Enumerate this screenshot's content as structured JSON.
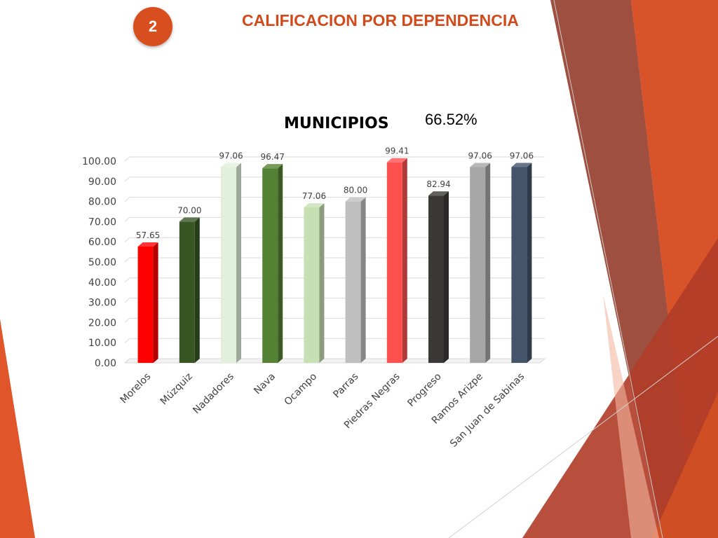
{
  "slide": {
    "number": "2",
    "title": "CALIFICACION POR DEPENDENCIA",
    "percent": "66.52%"
  },
  "colors": {
    "accent": "#d94e1f",
    "title": "#d04a1c"
  },
  "chart_data": {
    "type": "bar",
    "title": "MUNICIPIOS",
    "categories": [
      "Morelos",
      "Múzquiz",
      "Nadadores",
      "Nava",
      "Ocampo",
      "Parras",
      "Piedras Negras",
      "Progreso",
      "Ramos Arizpe",
      "San Juan de Sabinas"
    ],
    "values": [
      57.65,
      70.0,
      97.06,
      96.47,
      77.06,
      80.0,
      99.41,
      82.94,
      97.06,
      97.06
    ],
    "value_labels": [
      "57.65",
      "70.00",
      "97.06",
      "96.47",
      "77.06",
      "80.00",
      "99.41",
      "82.94",
      "97.06",
      "97.06"
    ],
    "colors": [
      "#ff0000",
      "#375623",
      "#e2efda",
      "#548235",
      "#c6e0b4",
      "#bfbfbf",
      "#ff5050",
      "#3b3838",
      "#a6a6a6",
      "#44546a"
    ],
    "ylim": [
      0,
      100
    ],
    "yticks": [
      "0.00",
      "10.00",
      "20.00",
      "30.00",
      "40.00",
      "50.00",
      "60.00",
      "70.00",
      "80.00",
      "90.00",
      "100.00"
    ],
    "grid": true,
    "legend": "none"
  }
}
